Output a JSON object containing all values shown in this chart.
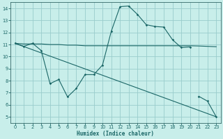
{
  "xlabel": "Humidex (Indice chaleur)",
  "bg_color": "#c8eeea",
  "grid_color": "#99cccc",
  "line_color": "#1a6666",
  "spine_color": "#336666",
  "xlim": [
    -0.5,
    23.5
  ],
  "ylim": [
    4.5,
    14.5
  ],
  "xticks": [
    0,
    1,
    2,
    3,
    4,
    5,
    6,
    7,
    8,
    9,
    10,
    11,
    12,
    13,
    14,
    15,
    16,
    17,
    18,
    19,
    20,
    21,
    22,
    23
  ],
  "yticks": [
    5,
    6,
    7,
    8,
    9,
    10,
    11,
    12,
    13,
    14
  ],
  "curve_main": {
    "segments": [
      {
        "x": [
          0,
          1,
          2,
          3,
          4,
          5,
          6,
          7,
          8,
          9,
          10,
          11,
          12,
          13,
          14,
          15,
          16,
          17,
          18,
          19,
          20
        ],
        "y": [
          11.1,
          10.85,
          11.1,
          10.5,
          7.75,
          8.1,
          6.65,
          7.35,
          8.5,
          8.5,
          9.3,
          12.1,
          14.15,
          14.2,
          13.5,
          12.65,
          12.5,
          12.45,
          11.4,
          10.75,
          10.8
        ]
      },
      {
        "x": [
          21,
          22,
          23
        ],
        "y": [
          6.7,
          6.3,
          5.0
        ]
      }
    ]
  },
  "curve_flat": {
    "x": [
      0,
      1,
      2,
      3,
      4,
      5,
      6,
      7,
      8,
      9,
      10,
      11,
      12,
      13,
      14,
      15,
      16,
      17,
      18,
      19,
      20,
      21,
      22,
      23
    ],
    "y": [
      11.1,
      11.05,
      11.05,
      11.05,
      11.0,
      11.0,
      10.95,
      10.95,
      10.9,
      10.9,
      10.9,
      10.9,
      10.9,
      10.9,
      10.9,
      10.9,
      10.9,
      10.9,
      10.9,
      10.9,
      10.9,
      10.88,
      10.85,
      10.82
    ]
  },
  "curve_diag": {
    "x": [
      0,
      23
    ],
    "y": [
      11.1,
      5.0
    ]
  }
}
